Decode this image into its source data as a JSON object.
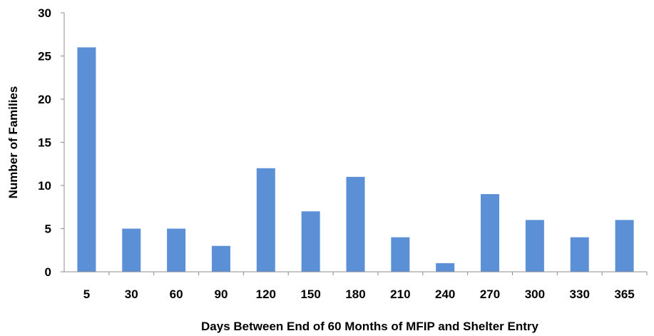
{
  "chart_data": {
    "type": "bar",
    "title": "",
    "xlabel": "Days Between End of  60 Months of MFIP and Shelter Entry",
    "ylabel": "Number of Families",
    "categories": [
      "5",
      "30",
      "60",
      "90",
      "120",
      "150",
      "180",
      "210",
      "240",
      "270",
      "300",
      "330",
      "365"
    ],
    "values": [
      26,
      5,
      5,
      3,
      12,
      7,
      11,
      4,
      1,
      9,
      6,
      4,
      6
    ],
    "ylim": [
      0,
      30
    ],
    "yticks": [
      "0",
      "5",
      "10",
      "15",
      "20",
      "25",
      "30"
    ],
    "grid": false,
    "legend": "none",
    "bar_color": "#5B8FD6",
    "axis_color": "#8C8C8C"
  }
}
